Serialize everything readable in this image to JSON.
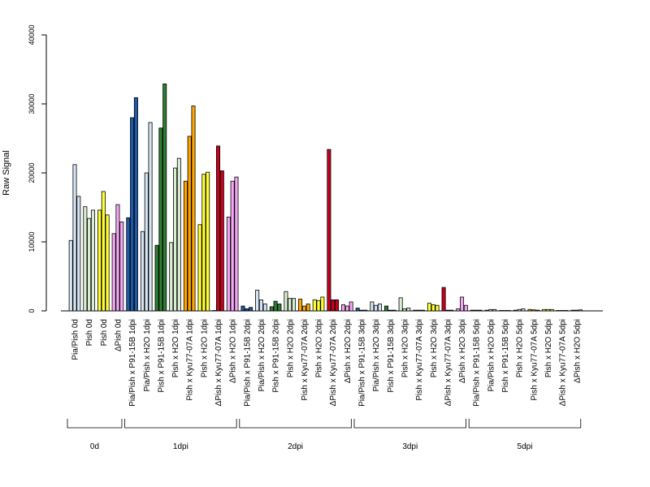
{
  "chart_data": {
    "type": "bar",
    "title": "",
    "xlabel": "",
    "ylabel": "Raw Signal",
    "ylim": [
      0,
      40000
    ],
    "yticks": [
      "0",
      "10000",
      "20000",
      "30000",
      "40000"
    ],
    "grid": false,
    "legend": "none",
    "categories": [
      "Pia/Pish 0d",
      "Pish 0d",
      "Pish 0d",
      "ΔPish 0d",
      "Pia/Pish x P91-15B 1dpi",
      "Pia/Pish x H2O 1dpi",
      "Pish x P91-15B 1dpi",
      "Pish x H2O 1dpi",
      "Pish x Kyu77-07A 1dpi",
      "Pish x H2O 1dpi",
      "ΔPish x Kyu77-07A 1dpi",
      "ΔPish x H2O 1dpi",
      "Pia/Pish x P91-15B 2dpi",
      "Pia/Pish x H2O 2dpi",
      "Pish x P91-15B 2dpi",
      "Pish x H2O 2dpi",
      "Pish x Kyu77-07A 2dpi",
      "Pish x H2O 2dpi",
      "ΔPish x Kyu77-07A 2dpi",
      "ΔPish x H2O 2dpi",
      "Pia/Pish x P91-15B 3dpi",
      "Pia/Pish x H2O 3dpi",
      "Pish x P91-15B 3dpi",
      "Pish x H2O 3dpi",
      "Pish x Kyu77-07A 3dpi",
      "Pish x H2O 3dpi",
      "ΔPish x Kyu77-07A 3dpi",
      "ΔPish x H2O 3dpi",
      "Pia/Pish x P91-15B 5dpi",
      "Pia/Pish x H2O 5dpi",
      "Pish x P91-15B 5dpi",
      "Pish x H2O 5dpi",
      "Pish x Kyu77-07A 5dpi",
      "Pish x H2O 5dpi",
      "ΔPish x Kyu77-07A 5dpi",
      "ΔPish x H2O 5dpi"
    ],
    "category_colors": [
      "#d6e4f4",
      "#d8edd2",
      "#ffff33",
      "#f2a7f2",
      "#1f5aa8",
      "#d6e4f4",
      "#2e7d32",
      "#d8edd2",
      "#ffa500",
      "#ffff33",
      "#c8001e",
      "#f2a7f2",
      "#1f5aa8",
      "#d6e4f4",
      "#2e7d32",
      "#d8edd2",
      "#ffa500",
      "#ffff33",
      "#c8001e",
      "#f2a7f2",
      "#1f5aa8",
      "#d6e4f4",
      "#2e7d32",
      "#d8edd2",
      "#ffa500",
      "#ffff33",
      "#c8001e",
      "#f2a7f2",
      "#1f5aa8",
      "#d6e4f4",
      "#2e7d32",
      "#d8edd2",
      "#ffa500",
      "#ffff33",
      "#c8001e",
      "#f2a7f2"
    ],
    "replicate_values": [
      [
        10200,
        21200,
        16600
      ],
      [
        15100,
        13400,
        14600
      ],
      [
        14600,
        17300,
        13900
      ],
      [
        11200,
        15400,
        12900
      ],
      [
        13500,
        28000,
        30900
      ],
      [
        11500,
        20000,
        27300
      ],
      [
        9500,
        26500,
        32900
      ],
      [
        9900,
        20700,
        22100
      ],
      [
        18800,
        25300,
        29700
      ],
      [
        12500,
        19800,
        20100
      ],
      [
        0,
        23900,
        20300
      ],
      [
        13600,
        18800,
        19400
      ],
      [
        700,
        300,
        500
      ],
      [
        3000,
        1600,
        1000
      ],
      [
        600,
        1400,
        1000
      ],
      [
        2800,
        1800,
        1800
      ],
      [
        1700,
        700,
        1000
      ],
      [
        1600,
        1500,
        2000
      ],
      [
        23400,
        1600,
        1600
      ],
      [
        900,
        700,
        1300
      ],
      [
        400,
        100,
        100
      ],
      [
        1300,
        800,
        1000
      ],
      [
        700,
        100,
        100
      ],
      [
        1900,
        300,
        400
      ],
      [
        100,
        100,
        100
      ],
      [
        1100,
        900,
        800
      ],
      [
        3400,
        100,
        100
      ],
      [
        300,
        2000,
        800
      ],
      [
        100,
        100,
        100
      ],
      [
        100,
        200,
        200
      ],
      [
        50,
        50,
        50
      ],
      [
        100,
        200,
        300
      ],
      [
        200,
        150,
        100
      ],
      [
        200,
        200,
        200
      ],
      [
        50,
        50,
        50
      ],
      [
        100,
        100,
        150
      ]
    ],
    "groups": [
      {
        "label": "0d",
        "count": 4
      },
      {
        "label": "1dpi",
        "count": 8
      },
      {
        "label": "2dpi",
        "count": 8
      },
      {
        "label": "3dpi",
        "count": 8
      },
      {
        "label": "5dpi",
        "count": 8
      }
    ]
  }
}
